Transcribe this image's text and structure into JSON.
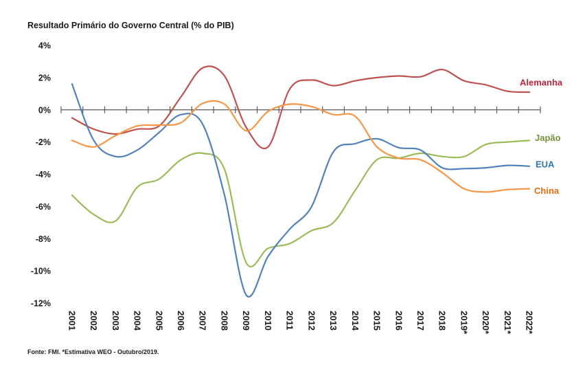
{
  "chart_data": {
    "type": "line",
    "title": "Resultado Primário do Governo Central (% do PIB)",
    "xlabel": "",
    "ylabel": "",
    "ylim": [
      -12,
      4
    ],
    "yticks": [
      4,
      2,
      0,
      -2,
      -4,
      -6,
      -8,
      -10,
      -12
    ],
    "ytick_labels": [
      "4%",
      "2%",
      "0%",
      "-2%",
      "-4%",
      "-6%",
      "-8%",
      "-10%",
      "-12%"
    ],
    "categories": [
      "2001",
      "2002",
      "2003",
      "2004",
      "2005",
      "2006",
      "2007",
      "2008",
      "2009",
      "2010",
      "2011",
      "2012",
      "2013",
      "2014",
      "2015",
      "2016",
      "2017",
      "2018",
      "2019*",
      "2020*",
      "2021*",
      "2022*"
    ],
    "grid": false,
    "legend": "inline-right",
    "smoothed": true,
    "series": [
      {
        "name": "Alemanha",
        "color": "#C0504D",
        "label_color": "#C0243A",
        "values": [
          -0.5,
          -1.2,
          -1.5,
          -1.2,
          -1.0,
          0.8,
          2.6,
          2.1,
          -1.1,
          -2.3,
          1.3,
          1.85,
          1.5,
          1.8,
          2.0,
          2.1,
          2.05,
          2.5,
          1.8,
          1.55,
          1.15,
          1.1
        ]
      },
      {
        "name": "Japão",
        "color": "#9BBB59",
        "label_color": "#76923C",
        "values": [
          -5.3,
          -6.5,
          -6.9,
          -4.8,
          -4.3,
          -3.1,
          -2.7,
          -3.7,
          -9.5,
          -8.6,
          -8.3,
          -7.5,
          -7.0,
          -5.0,
          -3.1,
          -3.0,
          -2.7,
          -2.9,
          -2.9,
          -2.15,
          -2.0,
          -1.9
        ]
      },
      {
        "name": "EUA",
        "color": "#4F81BD",
        "label_color": "#2E75B6",
        "values": [
          1.6,
          -1.9,
          -2.9,
          -2.5,
          -1.4,
          -0.3,
          -0.9,
          -5.3,
          -11.5,
          -9.1,
          -7.4,
          -6.0,
          -2.6,
          -2.1,
          -1.8,
          -2.35,
          -2.5,
          -3.6,
          -3.65,
          -3.6,
          -3.45,
          -3.5
        ]
      },
      {
        "name": "China",
        "color": "#F79646",
        "label_color": "#E46C0A",
        "values": [
          -1.9,
          -2.3,
          -1.6,
          -1.0,
          -0.95,
          -0.8,
          0.4,
          0.35,
          -1.3,
          -0.1,
          0.35,
          0.2,
          -0.3,
          -0.4,
          -2.3,
          -3.0,
          -3.1,
          -3.9,
          -4.9,
          -5.1,
          -4.95,
          -4.9
        ]
      }
    ],
    "footer": "Fonte: FMI. *Estimativa WEO - Outubro/2019."
  }
}
